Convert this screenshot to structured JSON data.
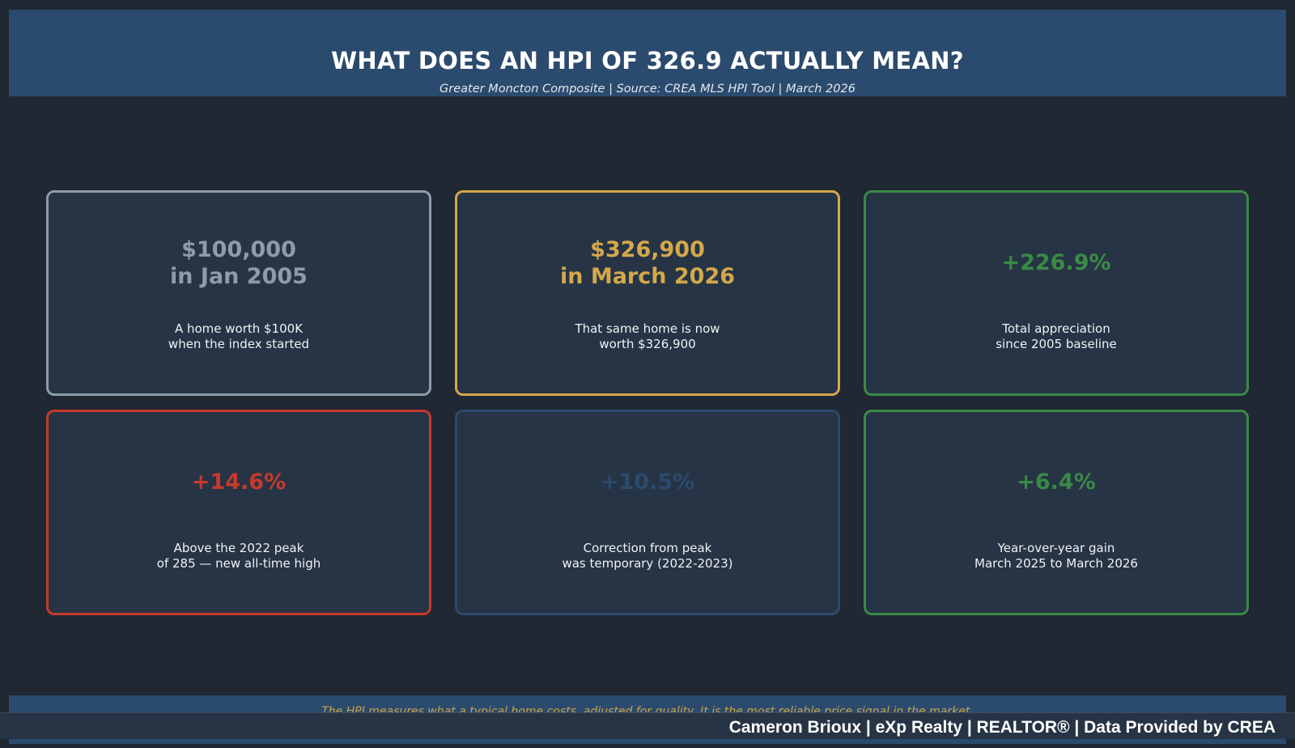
{
  "header": {
    "title": "WHAT DOES AN HPI OF 326.9 ACTUALLY MEAN?",
    "subtitle": "Greater Moncton Composite  |  Source: CREA MLS HPI Tool  |  March 2026"
  },
  "cards": [
    {
      "headline_line1": "$100,000",
      "headline_line2": "in Jan 2005",
      "desc_line1": "A home worth $100K",
      "desc_line2": "when the index started",
      "color": "#8e9caa"
    },
    {
      "headline_line1": "$326,900",
      "headline_line2": "in March 2026",
      "desc_line1": "That same home is now",
      "desc_line2": "worth $326,900",
      "color": "#d4a84a"
    },
    {
      "headline_line1": "+226.9%",
      "desc_line1": "Total appreciation",
      "desc_line2": "since 2005 baseline",
      "color": "#3a8a45"
    },
    {
      "headline_line1": "+14.6%",
      "desc_line1": "Above the 2022 peak",
      "desc_line2": "of 285 — new all-time high",
      "color": "#c8392c"
    },
    {
      "headline_line1": "+10.5%",
      "desc_line1": "Correction from peak",
      "desc_line2": "was temporary (2022-2023)",
      "color": "#2b4b6e"
    },
    {
      "headline_line1": "+6.4%",
      "desc_line1": "Year-over-year gain",
      "desc_line2": "March 2025 to March 2026",
      "color": "#3a8a45"
    }
  ],
  "footer": {
    "note": "The HPI measures what a typical home costs, adjusted for quality. It is the most reliable price signal in the market.",
    "brand": "Cameron Brioux  |  eXp Realty  |  REALTOR®  |  Data Provided by CREA"
  }
}
